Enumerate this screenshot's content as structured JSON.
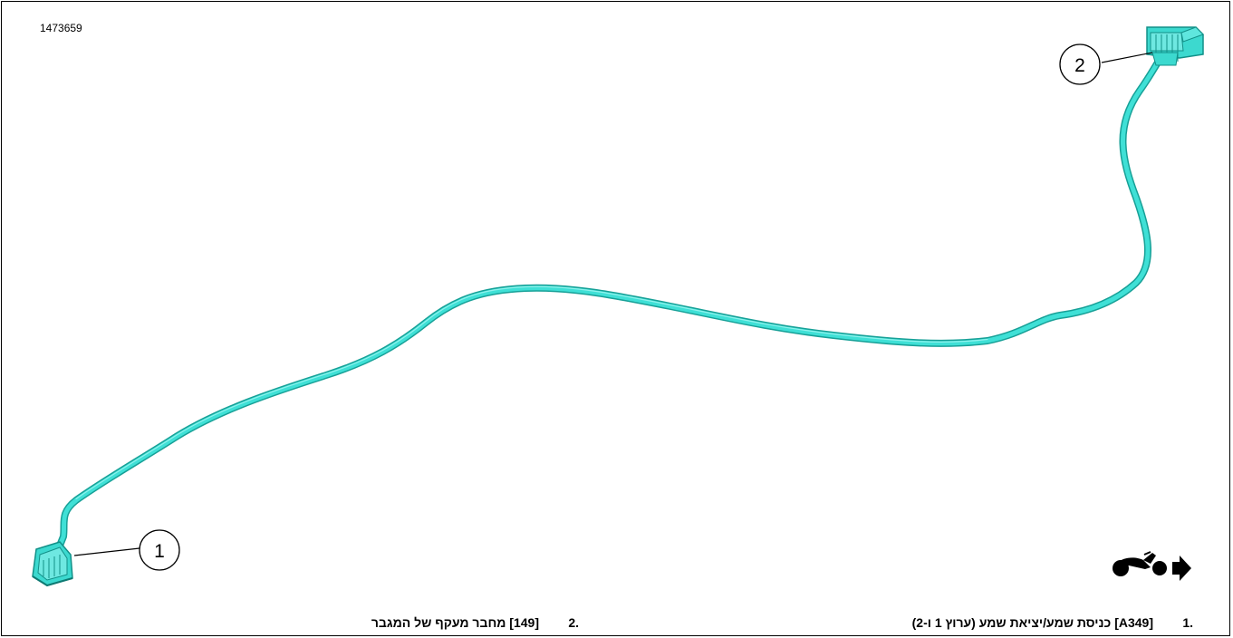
{
  "figure": {
    "id": "1473659"
  },
  "callouts": [
    {
      "number": "1"
    },
    {
      "number": "2"
    }
  ],
  "legend": {
    "items": [
      {
        "number": "1.",
        "text": "[A349] כניסת שמע/יציאת שמע (ערוץ 1 ו-2)"
      },
      {
        "number": "2.",
        "text": "[149] מחבר מעקף של המגבר"
      }
    ]
  },
  "colors": {
    "cable": "#33d6cc",
    "cable_shade": "#1aa79e",
    "connector": "#40ddd4",
    "line": "#000000"
  },
  "icons": {
    "direction": "motorcycle-forward-arrow-icon"
  }
}
